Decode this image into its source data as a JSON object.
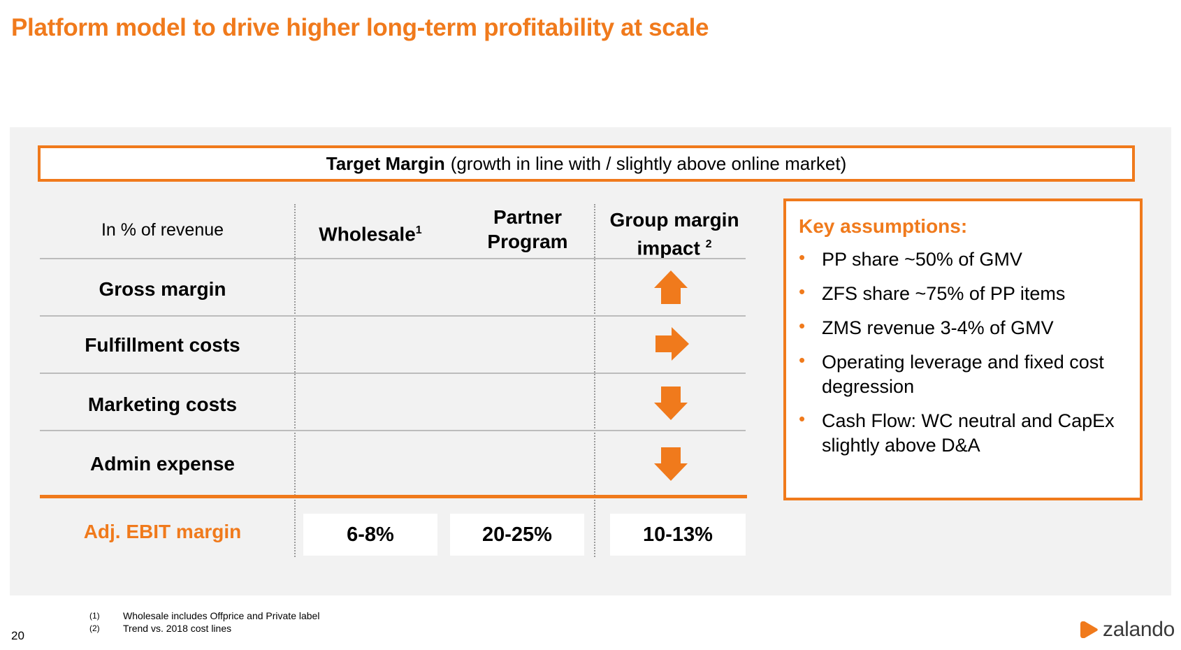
{
  "title": "Platform model to drive higher long-term profitability at scale",
  "target_margin": {
    "label": "Target Margin",
    "note": "(growth in line with / slightly above online market)"
  },
  "table": {
    "header_first": "In % of revenue",
    "columns": [
      {
        "name": "Wholesale",
        "sup": "1"
      },
      {
        "name_line1": "Partner",
        "name_line2": "Program"
      },
      {
        "name_line1": "Group margin",
        "name_line2": "impact",
        "sup": "2"
      }
    ],
    "rows": [
      {
        "label": "Gross margin",
        "impact": "up",
        "impact_icon": "arrow-up-icon"
      },
      {
        "label": "Fulfillment costs",
        "impact": "flat",
        "impact_icon": "arrow-right-icon"
      },
      {
        "label": "Marketing costs",
        "impact": "down",
        "impact_icon": "arrow-down-icon"
      },
      {
        "label": "Admin expense",
        "impact": "down",
        "impact_icon": "arrow-down-icon"
      }
    ],
    "ebit": {
      "label": "Adj. EBIT margin",
      "wholesale": "6-8%",
      "partner_program": "20-25%",
      "group": "10-13%"
    }
  },
  "assumptions": {
    "title": "Key assumptions:",
    "items": [
      "PP share ~50% of GMV",
      "ZFS share ~75% of PP items",
      "ZMS revenue 3-4% of GMV",
      "Operating leverage and fixed cost degression",
      "Cash Flow: WC neutral and CapEx slightly above D&A"
    ],
    "bullet": "•"
  },
  "footnotes": [
    {
      "num": "(1)",
      "text": "Wholesale includes Offprice and Private label"
    },
    {
      "num": "(2)",
      "text": "Trend vs. 2018 cost lines"
    }
  ],
  "page_number": "20",
  "logo": {
    "text": "zalando",
    "icon": "zalando-logo-icon"
  },
  "colors": {
    "accent": "#f07a1c",
    "panel": "#f2f2f2"
  }
}
